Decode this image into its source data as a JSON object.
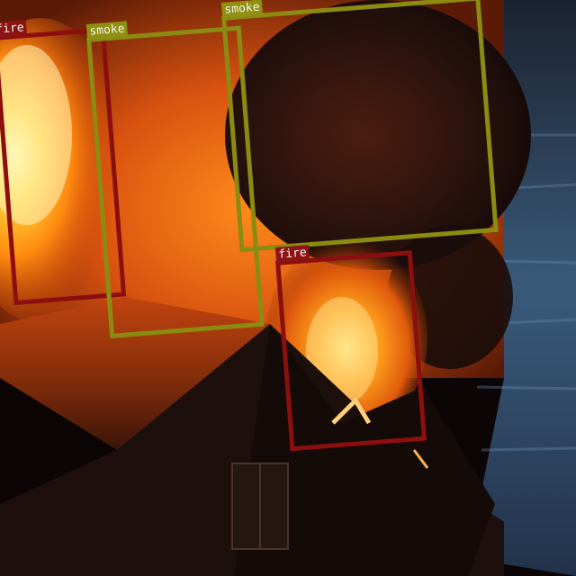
{
  "photo": {
    "subject": "house-fire"
  },
  "detections": [
    {
      "label": "fire",
      "color": "#8b0f0f",
      "label_bg": "#8c1414"
    },
    {
      "label": "smoke",
      "color": "#8b8b12",
      "label_bg": "#8f8f10"
    },
    {
      "label": "smoke",
      "color": "#8b8b12",
      "label_bg": "#8f8f10"
    },
    {
      "label": "fire",
      "color": "#8b0f0f",
      "label_bg": "#8c1414"
    }
  ]
}
